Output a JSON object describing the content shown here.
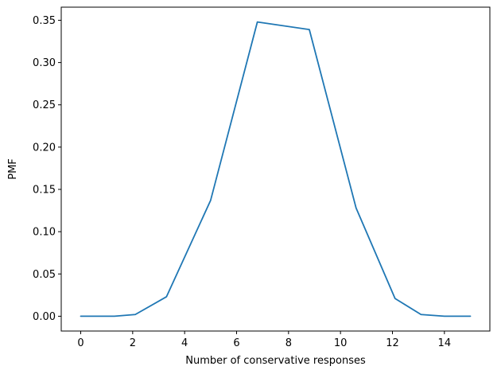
{
  "chart_data": {
    "type": "line",
    "title": "",
    "xlabel": "Number of conservative responses",
    "ylabel": "PMF",
    "xlim": [
      -0.75,
      15.75
    ],
    "ylim": [
      -0.0175,
      0.3655
    ],
    "x_ticks": [
      0,
      2,
      4,
      6,
      8,
      10,
      12,
      14
    ],
    "y_ticks": [
      0.0,
      0.05,
      0.1,
      0.15,
      0.2,
      0.25,
      0.3,
      0.35
    ],
    "x_tick_labels": [
      "0",
      "2",
      "4",
      "6",
      "8",
      "10",
      "12",
      "14"
    ],
    "y_tick_labels": [
      "0.00",
      "0.05",
      "0.10",
      "0.15",
      "0.20",
      "0.25",
      "0.30",
      "0.35"
    ],
    "grid": false,
    "legend": "none",
    "series": [
      {
        "color": "#1f77b4",
        "x": [
          0,
          1.3,
          2.1,
          3.3,
          5.0,
          6.8,
          8.8,
          10.6,
          12.1,
          13.1,
          14.0,
          15.0
        ],
        "y": [
          0.0,
          0.0,
          0.002,
          0.023,
          0.137,
          0.348,
          0.339,
          0.128,
          0.021,
          0.002,
          0.0,
          0.0
        ]
      }
    ]
  }
}
